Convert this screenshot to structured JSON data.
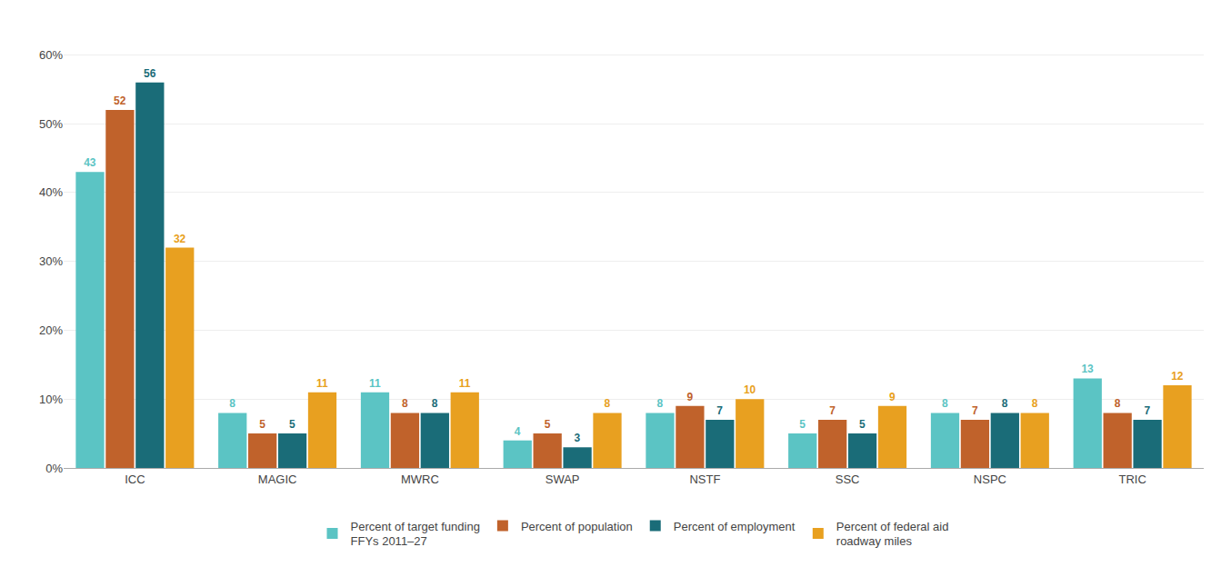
{
  "chart_data": {
    "type": "bar",
    "categories": [
      "ICC",
      "MAGIC",
      "MWRC",
      "SWAP",
      "NSTF",
      "SSC",
      "NSPC",
      "TRIC"
    ],
    "series": [
      {
        "name": "Percent of target funding\nFFYs 2011–27",
        "color": "#5BC4C4",
        "values": [
          43,
          8,
          11,
          4,
          8,
          5,
          8,
          13
        ]
      },
      {
        "name": "Percent of population",
        "color": "#C0622B",
        "values": [
          52,
          5,
          8,
          5,
          9,
          7,
          7,
          8
        ]
      },
      {
        "name": "Percent of employment",
        "color": "#1A6C78",
        "values": [
          56,
          5,
          8,
          3,
          7,
          5,
          8,
          7
        ]
      },
      {
        "name": "Percent of federal aid\nroadway miles",
        "color": "#E8A020",
        "values": [
          32,
          11,
          11,
          8,
          10,
          9,
          8,
          12
        ]
      }
    ],
    "ylim": [
      0,
      64
    ],
    "yticks": [
      {
        "value": 0,
        "label": "0%"
      },
      {
        "value": 10,
        "label": "10%"
      },
      {
        "value": 20,
        "label": "20%"
      },
      {
        "value": 30,
        "label": "30%"
      },
      {
        "value": 40,
        "label": "40%"
      },
      {
        "value": 50,
        "label": "50%"
      },
      {
        "value": 60,
        "label": "60%"
      }
    ],
    "grid": true,
    "legend": "bottom",
    "data_labels": true
  }
}
